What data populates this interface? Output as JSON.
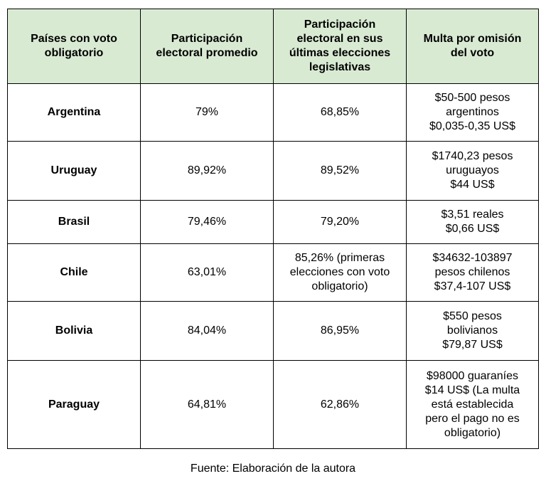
{
  "table": {
    "header": [
      [
        "Países con voto",
        "obligatorio"
      ],
      [
        "Participación",
        "electoral promedio"
      ],
      [
        "Participación",
        "electoral en sus",
        "últimas elecciones",
        "legislativas"
      ],
      [
        "Multa por omisión",
        "del voto"
      ]
    ],
    "rows": [
      [
        [
          "Argentina"
        ],
        [
          "79%"
        ],
        [
          "68,85%"
        ],
        [
          "$50-500 pesos",
          "argentinos",
          "$0,035-0,35 US$"
        ]
      ],
      [
        [
          "Uruguay"
        ],
        [
          "89,92%"
        ],
        [
          "89,52%"
        ],
        [
          "$1740,23 pesos",
          "uruguayos",
          "$44 US$"
        ]
      ],
      [
        [
          "Brasil"
        ],
        [
          "79,46%"
        ],
        [
          "79,20%"
        ],
        [
          "$3,51 reales",
          "$0,66 US$"
        ]
      ],
      [
        [
          "Chile"
        ],
        [
          "63,01%"
        ],
        [
          "85,26% (primeras",
          "elecciones con voto",
          "obligatorio)"
        ],
        [
          "$34632-103897",
          "pesos chilenos",
          "$37,4-107 US$"
        ]
      ],
      [
        [
          "Bolivia"
        ],
        [
          "84,04%"
        ],
        [
          "86,95%"
        ],
        [
          "$550 pesos",
          "bolivianos",
          "$79,87 US$"
        ]
      ],
      [
        [
          "Paraguay"
        ],
        [
          "64,81%"
        ],
        [
          "62,86%"
        ],
        [
          "$98000 guaraníes",
          "$14 US$ (La multa",
          "está establecida",
          "pero el pago no es",
          "obligatorio)"
        ]
      ]
    ]
  },
  "footer": "Fuente: Elaboración de la autora"
}
